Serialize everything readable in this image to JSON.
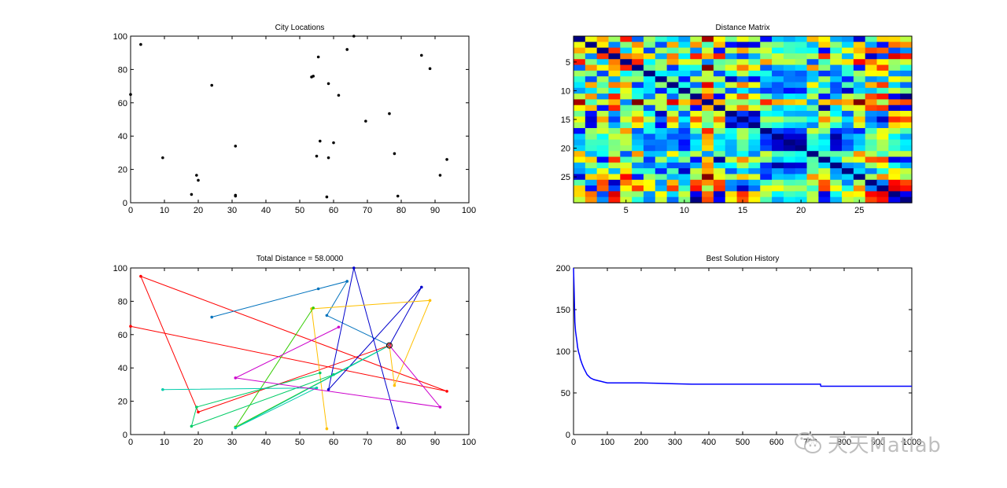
{
  "chart_data": [
    {
      "type": "scatter",
      "title": "City Locations",
      "xlim": [
        0,
        100
      ],
      "ylim": [
        0,
        100
      ],
      "xticks": [
        0,
        10,
        20,
        30,
        40,
        50,
        60,
        70,
        80,
        90,
        100
      ],
      "yticks": [
        0,
        20,
        40,
        60,
        80,
        100
      ],
      "marker_color": "#000000",
      "points": [
        [
          3,
          95
        ],
        [
          0,
          65
        ],
        [
          9.5,
          27
        ],
        [
          18,
          5
        ],
        [
          19.5,
          16.5
        ],
        [
          20,
          13.5
        ],
        [
          24,
          70.5
        ],
        [
          31,
          34
        ],
        [
          31,
          4.5
        ],
        [
          31,
          4
        ],
        [
          53.5,
          75.5
        ],
        [
          54,
          76
        ],
        [
          55,
          28
        ],
        [
          55.5,
          87.5
        ],
        [
          56,
          37
        ],
        [
          58,
          3.5
        ],
        [
          58.5,
          71.5
        ],
        [
          58.5,
          27
        ],
        [
          60,
          36
        ],
        [
          61.5,
          64.5
        ],
        [
          64,
          92
        ],
        [
          66,
          100
        ],
        [
          69.5,
          49
        ],
        [
          76.5,
          53.5
        ],
        [
          78,
          29.5
        ],
        [
          79,
          4
        ],
        [
          86,
          88.5
        ],
        [
          88.5,
          80.5
        ],
        [
          91.5,
          16.5
        ],
        [
          93.5,
          26
        ]
      ]
    },
    {
      "type": "heatmap",
      "title": "Distance Matrix",
      "xticks": [
        5,
        10,
        15,
        20,
        25
      ],
      "yticks": [
        5,
        10,
        15,
        20,
        25
      ],
      "size": 29,
      "colormap": "jet",
      "coords": [
        [
          93.5,
          26
        ],
        [
          55.5,
          87.5
        ],
        [
          9.5,
          27
        ],
        [
          86,
          88.5
        ],
        [
          0,
          65
        ],
        [
          79,
          4
        ],
        [
          31,
          34
        ],
        [
          61.5,
          64.5
        ],
        [
          58,
          3.5
        ],
        [
          69.5,
          49
        ],
        [
          31,
          4.5
        ],
        [
          3,
          95
        ],
        [
          20,
          13.5
        ],
        [
          58.5,
          71.5
        ],
        [
          64,
          92
        ],
        [
          53.5,
          75.5
        ],
        [
          78,
          29.5
        ],
        [
          55,
          28
        ],
        [
          60,
          36
        ],
        [
          56,
          37
        ],
        [
          24,
          70.5
        ],
        [
          19.5,
          16.5
        ],
        [
          58.5,
          27
        ],
        [
          76.5,
          53.5
        ],
        [
          91.5,
          16.5
        ],
        [
          88.5,
          80.5
        ],
        [
          66,
          100
        ],
        [
          18,
          5
        ],
        [
          31,
          4
        ]
      ]
    },
    {
      "type": "line",
      "title": "Total Distance = 58.0000",
      "xlim": [
        0,
        100
      ],
      "ylim": [
        0,
        100
      ],
      "xticks": [
        0,
        10,
        20,
        30,
        40,
        50,
        60,
        70,
        80,
        90,
        100
      ],
      "yticks": [
        0,
        20,
        40,
        60,
        80,
        100
      ],
      "depot": [
        76.5,
        53.5
      ],
      "routes": [
        {
          "color": "#ff0000",
          "points": [
            [
              76.5,
              53.5
            ],
            [
              20,
              13.5
            ],
            [
              3,
              95
            ],
            [
              93.5,
              26
            ],
            [
              0,
              65
            ]
          ]
        },
        {
          "color": "#0072bd",
          "points": [
            [
              76.5,
              53.5
            ],
            [
              58,
              71.5
            ],
            [
              64,
              92
            ],
            [
              55.5,
              87.5
            ],
            [
              24,
              70.5
            ]
          ]
        },
        {
          "color": "#0000cc",
          "points": [
            [
              76.5,
              53.5
            ],
            [
              86,
              88.5
            ],
            [
              58.5,
              27
            ],
            [
              66,
              100
            ],
            [
              79,
              4
            ]
          ]
        },
        {
          "color": "#ffc000",
          "points": [
            [
              76.5,
              53.5
            ],
            [
              78,
              29.5
            ],
            [
              88.5,
              80.5
            ],
            [
              53.5,
              75.5
            ],
            [
              58,
              3.5
            ]
          ]
        },
        {
          "color": "#33cc00",
          "points": [
            [
              76.5,
              53.5
            ],
            [
              31,
              4.5
            ],
            [
              54,
              76
            ]
          ]
        },
        {
          "color": "#00cc66",
          "points": [
            [
              76.5,
              53.5
            ],
            [
              60,
              36
            ],
            [
              18,
              5
            ],
            [
              19.5,
              16.5
            ],
            [
              56,
              37
            ]
          ]
        },
        {
          "color": "#00ccaa",
          "points": [
            [
              76.5,
              53.5
            ],
            [
              31,
              4
            ],
            [
              55,
              28
            ],
            [
              9.5,
              27
            ]
          ]
        },
        {
          "color": "#cc00cc",
          "points": [
            [
              76.5,
              53.5
            ],
            [
              91.5,
              16.5
            ],
            [
              31,
              34
            ],
            [
              61.5,
              64.5
            ]
          ]
        }
      ]
    },
    {
      "type": "line",
      "title": "Best Solution History",
      "xlim": [
        0,
        1000
      ],
      "ylim": [
        0,
        200
      ],
      "xticks": [
        0,
        100,
        200,
        300,
        400,
        500,
        600,
        700,
        800,
        900,
        1000
      ],
      "xtick_labels": [
        "0",
        "100",
        "200",
        "300",
        "400",
        "500",
        "600",
        "700",
        "800",
        "900",
        "1000"
      ],
      "yticks": [
        0,
        50,
        100,
        150,
        200
      ],
      "color": "#0000ff",
      "x": [
        0,
        2,
        4,
        6,
        8,
        10,
        12,
        15,
        18,
        20,
        25,
        30,
        35,
        40,
        45,
        50,
        60,
        70,
        80,
        90,
        100,
        150,
        200,
        250,
        300,
        350,
        400,
        500,
        600,
        700,
        730,
        731,
        800,
        900,
        1000
      ],
      "y": [
        200,
        170,
        135,
        124,
        118,
        112,
        105,
        99,
        95,
        91,
        85,
        80,
        76,
        72,
        70,
        68,
        66,
        65,
        64,
        63,
        62,
        62,
        62,
        61.5,
        61,
        60.5,
        60.5,
        60.5,
        60.5,
        60.5,
        60.5,
        58,
        58,
        58,
        58
      ]
    }
  ],
  "watermark": {
    "text": "天天Matlab",
    "icon": "wechat-icon"
  }
}
